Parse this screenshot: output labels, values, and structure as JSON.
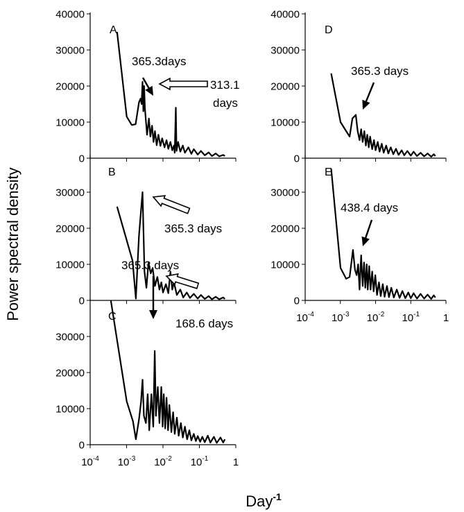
{
  "figure": {
    "ylabel": "Power spectral density",
    "xlabel_base": "Day",
    "xlabel_exp": "-1"
  },
  "chart_data": [
    {
      "panel": "A",
      "type": "line",
      "xscale": "log",
      "xlim": [
        0.0001,
        1
      ],
      "ylim": [
        0,
        40000
      ],
      "yticks": [
        0,
        10000,
        20000,
        30000,
        40000
      ],
      "show_xaxis_ticks": false,
      "points": [
        [
          0.000548,
          35000
        ],
        [
          0.00101,
          11500
        ],
        [
          0.00139,
          9200
        ],
        [
          0.00177,
          9400
        ],
        [
          0.00219,
          15500
        ],
        [
          0.00243,
          16500
        ],
        [
          0.00259,
          15000
        ],
        [
          0.00274,
          21200
        ],
        [
          0.00289,
          13000
        ],
        [
          0.00303,
          20000
        ],
        [
          0.00319,
          14000
        ],
        [
          0.00335,
          11000
        ],
        [
          0.00365,
          6500
        ],
        [
          0.0041,
          11000
        ],
        [
          0.0045,
          6000
        ],
        [
          0.005,
          9000
        ],
        [
          0.0055,
          4500
        ],
        [
          0.006,
          7500
        ],
        [
          0.0067,
          3600
        ],
        [
          0.0075,
          6500
        ],
        [
          0.0085,
          3400
        ],
        [
          0.0095,
          5500
        ],
        [
          0.011,
          3000
        ],
        [
          0.0125,
          5000
        ],
        [
          0.014,
          2600
        ],
        [
          0.016,
          4500
        ],
        [
          0.018,
          2200
        ],
        [
          0.02,
          3500
        ],
        [
          0.021,
          1500
        ],
        [
          0.0225,
          14000
        ],
        [
          0.0235,
          2000
        ],
        [
          0.026,
          4500
        ],
        [
          0.03,
          1800
        ],
        [
          0.035,
          3500
        ],
        [
          0.04,
          1500
        ],
        [
          0.05,
          3000
        ],
        [
          0.06,
          1200
        ],
        [
          0.07,
          2500
        ],
        [
          0.09,
          1000
        ],
        [
          0.11,
          2000
        ],
        [
          0.14,
          800
        ],
        [
          0.18,
          1600
        ],
        [
          0.22,
          600
        ],
        [
          0.28,
          1300
        ],
        [
          0.35,
          500
        ],
        [
          0.45,
          900
        ],
        [
          0.5,
          600
        ]
      ],
      "annotations": [
        {
          "text": "365.3days",
          "x": 0.00274,
          "arrow": "solid"
        },
        {
          "text": "313.1",
          "text2": "days",
          "x": 0.00319,
          "arrow": "hollow"
        }
      ]
    },
    {
      "panel": "B",
      "type": "line",
      "xscale": "log",
      "xlim": [
        0.0001,
        1
      ],
      "ylim": [
        0,
        40000
      ],
      "yticks": [
        0,
        10000,
        20000,
        30000
      ],
      "show_xaxis_ticks": false,
      "points": [
        [
          0.000548,
          26000
        ],
        [
          0.00146,
          11000
        ],
        [
          0.0018,
          500
        ],
        [
          0.00219,
          18000
        ],
        [
          0.00274,
          30000
        ],
        [
          0.0031,
          8000
        ],
        [
          0.0035,
          3500
        ],
        [
          0.004,
          10500
        ],
        [
          0.0046,
          7500
        ],
        [
          0.0052,
          9000
        ],
        [
          0.006,
          4000
        ],
        [
          0.007,
          6500
        ],
        [
          0.008,
          3000
        ],
        [
          0.009,
          5000
        ],
        [
          0.01,
          2200
        ],
        [
          0.012,
          4500
        ],
        [
          0.014,
          2000
        ],
        [
          0.016,
          8000
        ],
        [
          0.018,
          3000
        ],
        [
          0.02,
          5000
        ],
        [
          0.024,
          1500
        ],
        [
          0.03,
          3000
        ],
        [
          0.036,
          800
        ],
        [
          0.045,
          2200
        ],
        [
          0.055,
          700
        ],
        [
          0.07,
          1800
        ],
        [
          0.09,
          500
        ],
        [
          0.11,
          1500
        ],
        [
          0.14,
          400
        ],
        [
          0.18,
          1200
        ],
        [
          0.22,
          300
        ],
        [
          0.28,
          1000
        ],
        [
          0.35,
          300
        ],
        [
          0.45,
          800
        ],
        [
          0.5,
          400
        ]
      ],
      "annotations": [
        {
          "text": "365.3 days",
          "x": 0.00274,
          "arrow": "hollow"
        }
      ]
    },
    {
      "panel": "C",
      "type": "line",
      "xscale": "log",
      "xlim": [
        0.0001,
        1
      ],
      "ylim": [
        0,
        40000
      ],
      "yticks": [
        0,
        10000,
        20000,
        30000
      ],
      "xticks": [
        "10-4",
        "10-3",
        "10-2",
        "10-1",
        "1"
      ],
      "show_xaxis_ticks": true,
      "points": [
        [
          0.00037,
          40000
        ],
        [
          0.00101,
          12000
        ],
        [
          0.0015,
          6500
        ],
        [
          0.0018,
          1500
        ],
        [
          0.00219,
          7000
        ],
        [
          0.0025,
          12000
        ],
        [
          0.00274,
          18000
        ],
        [
          0.003,
          8000
        ],
        [
          0.0034,
          6000
        ],
        [
          0.0038,
          14000
        ],
        [
          0.0042,
          4000
        ],
        [
          0.0048,
          14000
        ],
        [
          0.0054,
          5000
        ],
        [
          0.00593,
          26000
        ],
        [
          0.0064,
          8000
        ],
        [
          0.0072,
          16000
        ],
        [
          0.008,
          6000
        ],
        [
          0.009,
          16000
        ],
        [
          0.0098,
          5000
        ],
        [
          0.0105,
          14000
        ],
        [
          0.0115,
          4500
        ],
        [
          0.0125,
          13000
        ],
        [
          0.0138,
          4000
        ],
        [
          0.015,
          11000
        ],
        [
          0.017,
          3500
        ],
        [
          0.019,
          9000
        ],
        [
          0.021,
          3000
        ],
        [
          0.024,
          7500
        ],
        [
          0.027,
          2500
        ],
        [
          0.031,
          6000
        ],
        [
          0.035,
          2000
        ],
        [
          0.04,
          5000
        ],
        [
          0.046,
          1500
        ],
        [
          0.053,
          4000
        ],
        [
          0.06,
          1200
        ],
        [
          0.07,
          3000
        ],
        [
          0.08,
          1000
        ],
        [
          0.09,
          2400
        ],
        [
          0.105,
          800
        ],
        [
          0.12,
          2200
        ],
        [
          0.14,
          700
        ],
        [
          0.17,
          2500
        ],
        [
          0.2,
          600
        ],
        [
          0.25,
          2200
        ],
        [
          0.3,
          500
        ],
        [
          0.38,
          2000
        ],
        [
          0.45,
          600
        ],
        [
          0.5,
          1500
        ]
      ],
      "annotations": [
        {
          "text": "365.3 days",
          "x": 0.00274,
          "arrow": "solid"
        },
        {
          "text": "168.6 days",
          "x": 0.00593,
          "arrow": "hollow"
        }
      ]
    },
    {
      "panel": "D",
      "type": "line",
      "xscale": "log",
      "xlim": [
        0.0001,
        1
      ],
      "ylim": [
        0,
        40000
      ],
      "yticks": [
        0,
        10000,
        20000,
        30000,
        40000
      ],
      "show_xaxis_ticks": false,
      "points": [
        [
          0.000548,
          23500
        ],
        [
          0.00101,
          10000
        ],
        [
          0.00146,
          7500
        ],
        [
          0.00183,
          6000
        ],
        [
          0.0022,
          11000
        ],
        [
          0.00274,
          12000
        ],
        [
          0.0031,
          7500
        ],
        [
          0.0035,
          5000
        ],
        [
          0.0039,
          8000
        ],
        [
          0.0043,
          4500
        ],
        [
          0.0048,
          7500
        ],
        [
          0.0053,
          3500
        ],
        [
          0.0058,
          6500
        ],
        [
          0.0064,
          3000
        ],
        [
          0.007,
          6000
        ],
        [
          0.008,
          2500
        ],
        [
          0.009,
          5000
        ],
        [
          0.01,
          2200
        ],
        [
          0.0115,
          4500
        ],
        [
          0.013,
          1800
        ],
        [
          0.015,
          4000
        ],
        [
          0.017,
          1500
        ],
        [
          0.02,
          3500
        ],
        [
          0.023,
          1300
        ],
        [
          0.027,
          3000
        ],
        [
          0.032,
          1100
        ],
        [
          0.038,
          2600
        ],
        [
          0.045,
          900
        ],
        [
          0.055,
          2200
        ],
        [
          0.065,
          800
        ],
        [
          0.08,
          2000
        ],
        [
          0.1,
          700
        ],
        [
          0.12,
          1800
        ],
        [
          0.15,
          600
        ],
        [
          0.19,
          1500
        ],
        [
          0.24,
          500
        ],
        [
          0.3,
          1300
        ],
        [
          0.38,
          400
        ],
        [
          0.45,
          1100
        ],
        [
          0.5,
          600
        ]
      ],
      "annotations": [
        {
          "text": "365.3 days",
          "x": 0.00274,
          "arrow": "solid"
        }
      ]
    },
    {
      "panel": "E",
      "type": "line",
      "xscale": "log",
      "xlim": [
        0.0001,
        1
      ],
      "ylim": [
        0,
        40000
      ],
      "yticks": [
        0,
        10000,
        20000,
        30000
      ],
      "xticks": [
        "10-4",
        "10-3",
        "10-2",
        "10-1",
        "1"
      ],
      "show_xaxis_ticks": true,
      "points": [
        [
          0.000548,
          36500
        ],
        [
          0.00101,
          9000
        ],
        [
          0.00146,
          6000
        ],
        [
          0.00183,
          6500
        ],
        [
          0.00228,
          14000
        ],
        [
          0.0026,
          8500
        ],
        [
          0.0029,
          7000
        ],
        [
          0.0032,
          10000
        ],
        [
          0.0035,
          3000
        ],
        [
          0.0039,
          12500
        ],
        [
          0.0043,
          4000
        ],
        [
          0.0047,
          10500
        ],
        [
          0.0051,
          3500
        ],
        [
          0.0056,
          10000
        ],
        [
          0.006,
          3000
        ],
        [
          0.0066,
          9500
        ],
        [
          0.0072,
          3000
        ],
        [
          0.008,
          8000
        ],
        [
          0.0088,
          2500
        ],
        [
          0.0098,
          7000
        ],
        [
          0.011,
          1500
        ],
        [
          0.0125,
          5000
        ],
        [
          0.014,
          1200
        ],
        [
          0.016,
          4500
        ],
        [
          0.018,
          1000
        ],
        [
          0.021,
          4000
        ],
        [
          0.024,
          900
        ],
        [
          0.028,
          3500
        ],
        [
          0.033,
          800
        ],
        [
          0.04,
          3000
        ],
        [
          0.048,
          700
        ],
        [
          0.058,
          2600
        ],
        [
          0.07,
          600
        ],
        [
          0.085,
          2200
        ],
        [
          0.1,
          600
        ],
        [
          0.12,
          2000
        ],
        [
          0.15,
          500
        ],
        [
          0.19,
          1800
        ],
        [
          0.24,
          500
        ],
        [
          0.3,
          1600
        ],
        [
          0.38,
          400
        ],
        [
          0.45,
          1400
        ],
        [
          0.5,
          800
        ]
      ],
      "annotations": [
        {
          "text": "438.4 days",
          "x": 0.00228,
          "arrow": "solid"
        }
      ]
    }
  ]
}
